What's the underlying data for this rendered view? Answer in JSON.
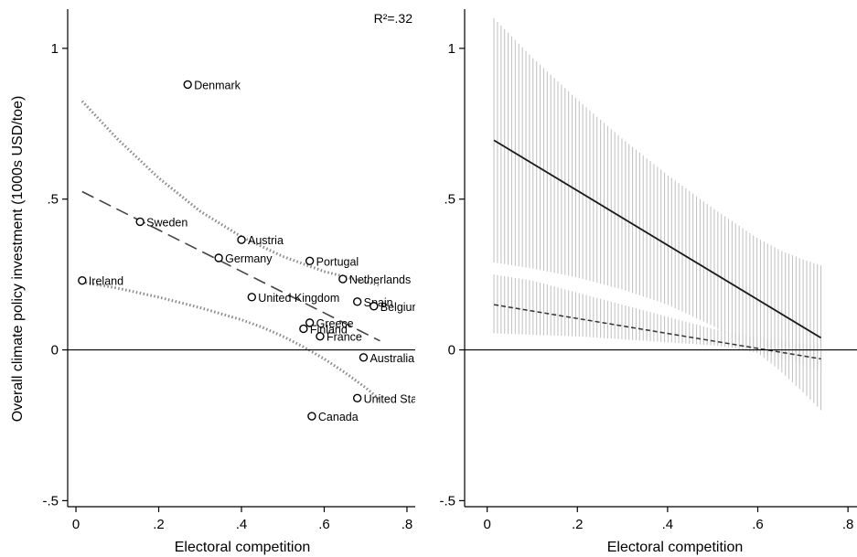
{
  "chart_data": [
    {
      "type": "scatter",
      "ylabel": "Overall climate policy investment (1000s USD/toe)",
      "xlabel": "Electoral competition",
      "annotation": "R²=.32",
      "xlim": [
        -0.02,
        0.82
      ],
      "ylim": [
        -0.52,
        1.13
      ],
      "x_ticks": [
        0,
        0.2,
        0.4,
        0.6,
        0.8
      ],
      "x_tick_labels": [
        "0",
        ".2",
        ".4",
        ".6",
        ".8"
      ],
      "y_ticks": [
        -0.5,
        0,
        0.5,
        1
      ],
      "y_tick_labels": [
        "-.5",
        "0",
        ".5",
        "1"
      ],
      "zero_line": true,
      "points": [
        {
          "label": "Denmark",
          "x": 0.27,
          "y": 0.88
        },
        {
          "label": "Sweden",
          "x": 0.155,
          "y": 0.425
        },
        {
          "label": "Austria",
          "x": 0.4,
          "y": 0.365
        },
        {
          "label": "Germany",
          "x": 0.345,
          "y": 0.305
        },
        {
          "label": "Portugal",
          "x": 0.565,
          "y": 0.295
        },
        {
          "label": "Ireland",
          "x": 0.015,
          "y": 0.23
        },
        {
          "label": "Netherlands",
          "x": 0.645,
          "y": 0.235
        },
        {
          "label": "United Kingdom",
          "x": 0.425,
          "y": 0.175
        },
        {
          "label": "Spain",
          "x": 0.68,
          "y": 0.16
        },
        {
          "label": "Belgium",
          "x": 0.72,
          "y": 0.145
        },
        {
          "label": "Greece",
          "x": 0.565,
          "y": 0.09
        },
        {
          "label": "Finland",
          "x": 0.55,
          "y": 0.07
        },
        {
          "label": "France",
          "x": 0.59,
          "y": 0.045
        },
        {
          "label": "Australia",
          "x": 0.695,
          "y": -0.025
        },
        {
          "label": "United States",
          "x": 0.68,
          "y": -0.16
        },
        {
          "label": "Canada",
          "x": 0.57,
          "y": -0.22
        }
      ],
      "fit_line": {
        "x": [
          0.015,
          0.735
        ],
        "y": [
          0.525,
          0.03
        ]
      },
      "ci_upper": {
        "x": [
          0.015,
          0.1,
          0.2,
          0.3,
          0.4,
          0.5,
          0.6,
          0.7,
          0.735
        ],
        "y": [
          0.825,
          0.7,
          0.57,
          0.46,
          0.375,
          0.31,
          0.26,
          0.225,
          0.215
        ]
      },
      "ci_lower": {
        "x": [
          0.015,
          0.1,
          0.2,
          0.3,
          0.4,
          0.45,
          0.5,
          0.55,
          0.6,
          0.65,
          0.7,
          0.735
        ],
        "y": [
          0.225,
          0.205,
          0.175,
          0.14,
          0.1,
          0.075,
          0.045,
          0.01,
          -0.03,
          -0.075,
          -0.125,
          -0.165
        ]
      }
    },
    {
      "type": "line",
      "xlabel": "Electoral competition",
      "xlim": [
        -0.05,
        0.82
      ],
      "ylim": [
        -0.52,
        1.13
      ],
      "x_ticks": [
        0,
        0.2,
        0.4,
        0.6,
        0.8
      ],
      "x_tick_labels": [
        "0",
        ".2",
        ".4",
        ".6",
        ".8"
      ],
      "y_ticks": [
        -0.5,
        0,
        0.5,
        1
      ],
      "y_tick_labels": [
        "-.5",
        "0",
        ".5",
        "1"
      ],
      "zero_line": true,
      "series": [
        {
          "style": "solid",
          "x": [
            0.015,
            0.74
          ],
          "y": [
            0.695,
            0.04
          ],
          "ci": {
            "x": [
              0.015,
              0.1,
              0.2,
              0.3,
              0.4,
              0.5,
              0.6,
              0.65,
              0.7,
              0.74
            ],
            "upper": [
              1.1,
              0.97,
              0.83,
              0.7,
              0.58,
              0.47,
              0.37,
              0.33,
              0.3,
              0.28
            ],
            "lower": [
              0.29,
              0.27,
              0.24,
              0.2,
              0.15,
              0.08,
              -0.01,
              -0.07,
              -0.14,
              -0.2
            ]
          }
        },
        {
          "style": "dashed",
          "x": [
            0.015,
            0.74
          ],
          "y": [
            0.15,
            -0.03
          ],
          "ci": {
            "x": [
              0.015,
              0.1,
              0.2,
              0.3,
              0.4,
              0.5,
              0.55,
              0.6,
              0.65,
              0.7,
              0.74
            ],
            "upper": [
              0.25,
              0.23,
              0.19,
              0.15,
              0.11,
              0.07,
              0.055,
              0.04,
              0.03,
              0.02,
              0.015
            ],
            "lower": [
              0.055,
              0.05,
              0.045,
              0.035,
              0.025,
              0.015,
              0.005,
              -0.01,
              -0.03,
              -0.05,
              -0.07
            ]
          }
        }
      ]
    }
  ]
}
